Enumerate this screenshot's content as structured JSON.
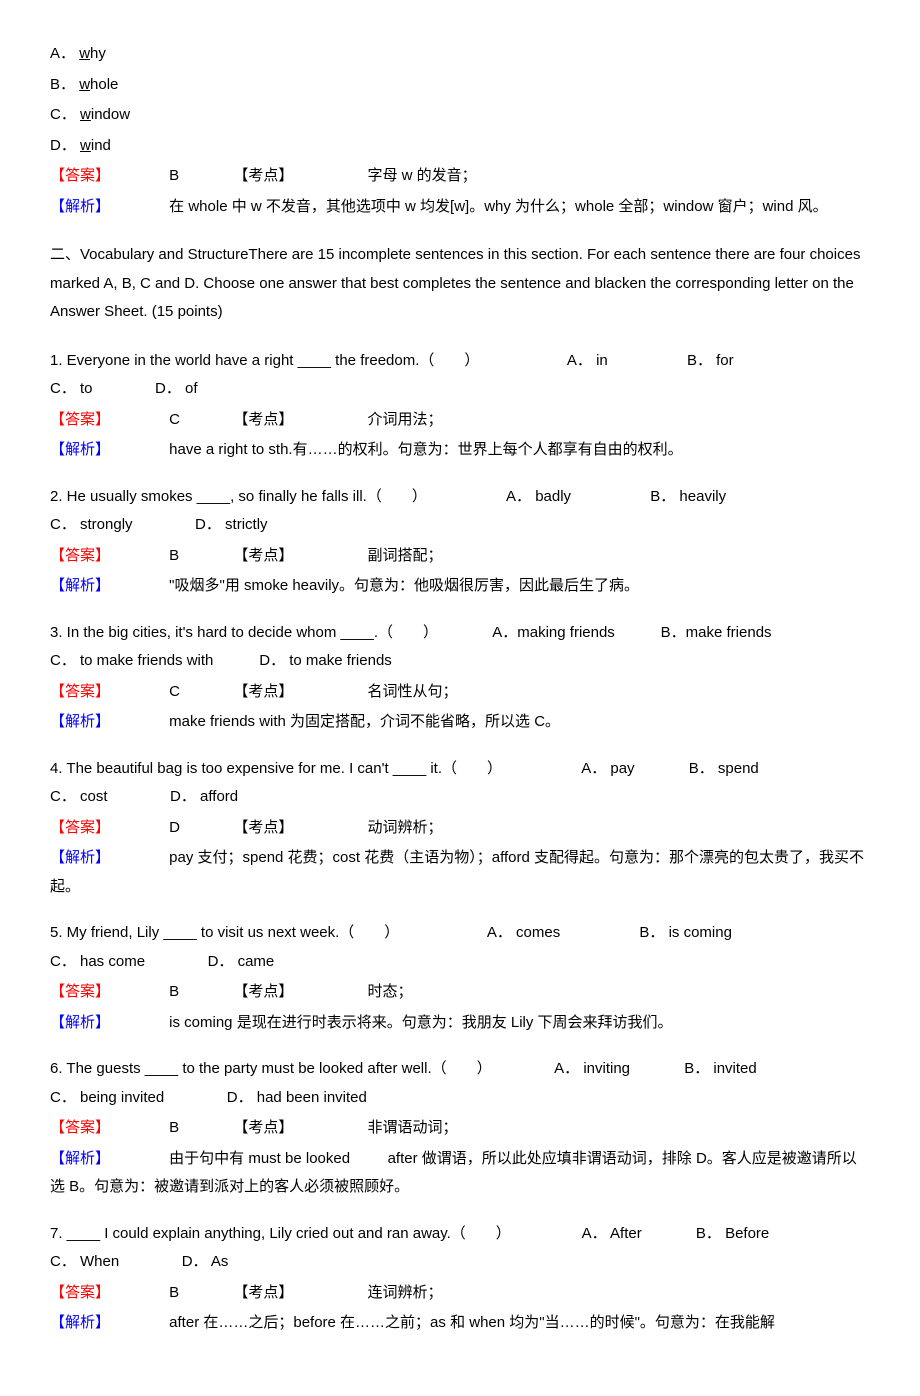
{
  "intro_options": {
    "a": {
      "letter": "A．",
      "underline": "w",
      "rest": "hy"
    },
    "b": {
      "letter": "B．",
      "underline": "w",
      "rest": "hole"
    },
    "c": {
      "letter": "C．",
      "underline": "w",
      "rest": "indow"
    },
    "d": {
      "letter": "D．",
      "underline": "w",
      "rest": "ind"
    }
  },
  "intro_answer": {
    "answer_label": "【答案】",
    "answer_value": "B",
    "topic_label": "【考点】",
    "topic_value": "字母 w 的发音；",
    "analysis_label": "【解析】",
    "analysis_text": "在 whole 中 w 不发音，其他选项中 w 均发[w]。why 为什么；whole 全部；window 窗户；wind 风。"
  },
  "section2": {
    "instruction": "二、Vocabulary and StructureThere are 15 incomplete sentences in this section. For each sentence there are four choices marked A, B, C and D. Choose one answer that best completes the sentence and blacken the corresponding letter on the Answer Sheet. (15 points)"
  },
  "q1": {
    "text": "1. Everyone in the world have a right ____ the freedom.（　　）",
    "optA": "A． in",
    "optB": "B． for",
    "optC": "C． to",
    "optD": "D． of",
    "answer_label": "【答案】",
    "answer_value": "C",
    "topic_label": "【考点】",
    "topic_value": "介词用法；",
    "analysis_label": "【解析】",
    "analysis_text": "have a right to sth.有……的权利。句意为：世界上每个人都享有自由的权利。"
  },
  "q2": {
    "text": "2. He usually smokes ____, so finally he falls ill.（　　）",
    "optA": "A． badly",
    "optB": "B． heavily",
    "optC": "C． strongly",
    "optD": "D． strictly",
    "answer_label": "【答案】",
    "answer_value": "B",
    "topic_label": "【考点】",
    "topic_value": "副词搭配；",
    "analysis_label": "【解析】",
    "analysis_text": "\"吸烟多\"用 smoke heavily。句意为：他吸烟很厉害，因此最后生了病。"
  },
  "q3": {
    "text": "3. In the big cities, it's hard to decide whom ____.（　　）",
    "optA": "A．making friends",
    "optB": "B．make friends",
    "optC": "C． to make friends with",
    "optD": "D． to make friends",
    "answer_label": "【答案】",
    "answer_value": "C",
    "topic_label": "【考点】",
    "topic_value": "名词性从句；",
    "analysis_label": "【解析】",
    "analysis_text": "make friends with 为固定搭配，介词不能省略，所以选 C。"
  },
  "q4": {
    "text": "4. The beautiful bag is too expensive for me. I can't ____ it.（　　）",
    "optA": "A． pay",
    "optB": "B． spend",
    "optC": "C． cost",
    "optD": "D． afford",
    "answer_label": "【答案】",
    "answer_value": "D",
    "topic_label": "【考点】",
    "topic_value": "动词辨析；",
    "analysis_label": "【解析】",
    "analysis_text": "pay 支付；spend 花费；cost 花费（主语为物）；afford 支配得起。句意为：那个漂亮的包太贵了，我买不起。"
  },
  "q5": {
    "text": "5. My friend, Lily ____ to visit us next week.（　　）",
    "optA": "A． comes",
    "optB": "B． is coming",
    "optC": "C． has come",
    "optD": "D． came",
    "answer_label": "【答案】",
    "answer_value": "B",
    "topic_label": "【考点】",
    "topic_value": "时态；",
    "analysis_label": "【解析】",
    "analysis_text": "is coming 是现在进行时表示将来。句意为：我朋友 Lily 下周会来拜访我们。"
  },
  "q6": {
    "text": "6. The guests ____ to the party must be looked after well.（　　）",
    "optA": "A． inviting",
    "optB": "B． invited",
    "optC": "C． being invited",
    "optD": "D． had been invited",
    "answer_label": "【答案】",
    "answer_value": "B",
    "topic_label": "【考点】",
    "topic_value": "非谓语动词；",
    "analysis_label": "【解析】",
    "analysis_text_part1": "由于句中有 must be looked",
    "analysis_text_part2": "after 做谓语，所以此处应填非谓语动词，排除 D。客人应是被邀请所以选 B。句意为：被邀请到派对上的客人必须被照顾好。"
  },
  "q7": {
    "text": "7. ____ I could explain anything, Lily cried out and ran away.（　　）",
    "optA": "A． After",
    "optB": "B． Before",
    "optC": "C． When",
    "optD": "D． As",
    "answer_label": "【答案】",
    "answer_value": "B",
    "topic_label": "【考点】",
    "topic_value": "连词辨析；",
    "analysis_label": "【解析】",
    "analysis_text": "after 在……之后；before 在……之前；as 和 when 均为\"当……的时候\"。句意为：在我能解"
  }
}
